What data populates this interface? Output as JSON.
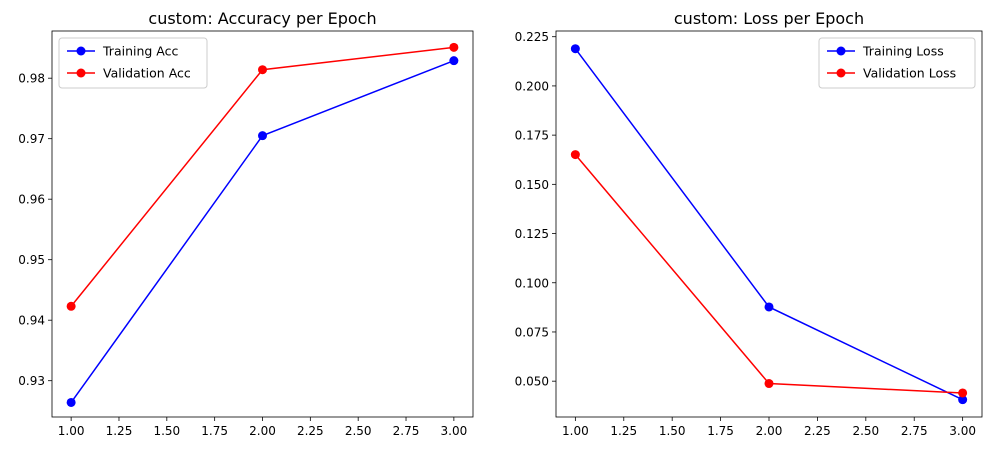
{
  "chart_data": [
    {
      "type": "line",
      "title": "custom: Accuracy per Epoch",
      "xlabel": "",
      "ylabel": "",
      "xlim": [
        0.9,
        3.1
      ],
      "ylim": [
        0.924,
        0.9878
      ],
      "xticks": [
        "1.00",
        "1.25",
        "1.50",
        "1.75",
        "2.00",
        "2.25",
        "2.50",
        "2.75",
        "3.00"
      ],
      "yticks": [
        "0.93",
        "0.94",
        "0.95",
        "0.96",
        "0.97",
        "0.98"
      ],
      "grid": false,
      "legend_position": "upper-left",
      "x": [
        1,
        2,
        3
      ],
      "series": [
        {
          "name": "Training Acc",
          "color": "#0000ff",
          "values": [
            0.9264,
            0.9705,
            0.9829
          ]
        },
        {
          "name": "Validation Acc",
          "color": "#ff0000",
          "values": [
            0.9423,
            0.9814,
            0.9851
          ]
        }
      ]
    },
    {
      "type": "line",
      "title": "custom: Loss per Epoch",
      "xlabel": "",
      "ylabel": "",
      "xlim": [
        0.9,
        3.1
      ],
      "ylim": [
        0.0318,
        0.2279
      ],
      "xticks": [
        "1.00",
        "1.25",
        "1.50",
        "1.75",
        "2.00",
        "2.25",
        "2.50",
        "2.75",
        "3.00"
      ],
      "yticks": [
        "0.050",
        "0.075",
        "0.100",
        "0.125",
        "0.150",
        "0.175",
        "0.200",
        "0.225"
      ],
      "grid": false,
      "legend_position": "upper-right",
      "x": [
        1,
        2,
        3
      ],
      "series": [
        {
          "name": "Training Loss",
          "color": "#0000ff",
          "values": [
            0.2189,
            0.0877,
            0.0406
          ]
        },
        {
          "name": "Validation Loss",
          "color": "#ff0000",
          "values": [
            0.1651,
            0.0488,
            0.044
          ]
        }
      ]
    }
  ]
}
